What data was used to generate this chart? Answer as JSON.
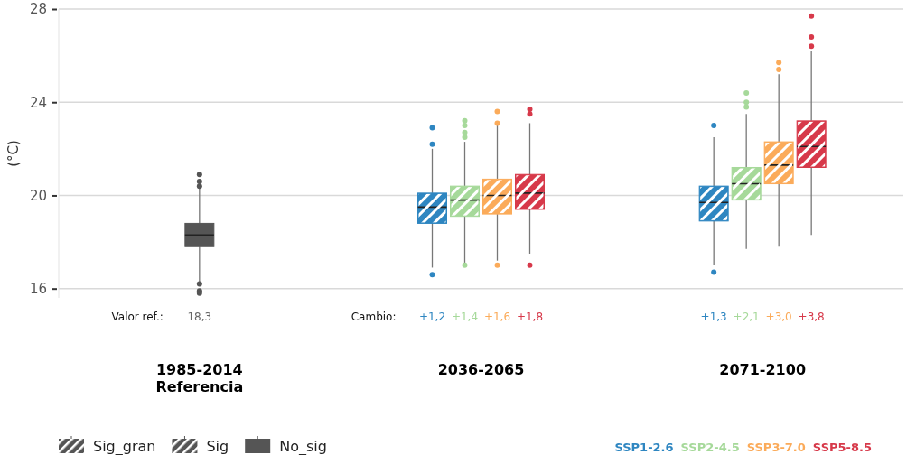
{
  "chart_data": {
    "type": "box",
    "ylabel": "(°C)",
    "categories": [
      "1985-2014\nReferencia",
      "2036-2065",
      "2071-2100"
    ],
    "ylim": [
      15.6,
      28
    ],
    "yticks": [
      16,
      20,
      24,
      28
    ],
    "grid": "y",
    "legend": "bottom right",
    "annotations": [
      "Valor ref.:",
      "Cambio:",
      "Sig_gran",
      "Sig",
      "No_sig"
    ],
    "series": [
      {
        "color": "#555555",
        "value_labels": [
          "18,3",
          null,
          null
        ],
        "boxes": [
          {
            "low": 16.3,
            "q1": 17.8,
            "median": 18.3,
            "q3": 18.8,
            "high": 20.3,
            "outliers": [
              20.4,
              20.6,
              20.9,
              16.2,
              15.9,
              15.8
            ]
          },
          null,
          null
        ]
      },
      {
        "name": "SSP1-2.6",
        "color": "#2e86c1",
        "value_labels": [
          null,
          "+1,2",
          "+1,3"
        ],
        "boxes": [
          null,
          {
            "low": 16.9,
            "q1": 18.8,
            "median": 19.5,
            "q3": 20.1,
            "high": 22.0,
            "outliers": [
              22.2,
              22.9,
              16.6
            ]
          },
          {
            "low": 17.0,
            "q1": 18.9,
            "median": 19.7,
            "q3": 20.4,
            "high": 22.5,
            "outliers": [
              23.0,
              16.7
            ]
          }
        ]
      },
      {
        "name": "SSP2-4.5",
        "color": "#a6d99a",
        "value_labels": [
          null,
          "+1,4",
          "+2,1"
        ],
        "boxes": [
          null,
          {
            "low": 17.1,
            "q1": 19.1,
            "median": 19.8,
            "q3": 20.4,
            "high": 22.3,
            "outliers": [
              22.5,
              22.7,
              23.0,
              23.2,
              17.0
            ]
          },
          {
            "low": 17.7,
            "q1": 19.8,
            "median": 20.5,
            "q3": 21.2,
            "high": 23.5,
            "outliers": [
              23.8,
              24.0,
              24.4
            ]
          }
        ]
      },
      {
        "name": "SSP3-7.0",
        "color": "#fbab5a",
        "value_labels": [
          null,
          "+1,6",
          "+3,0"
        ],
        "boxes": [
          null,
          {
            "low": 17.2,
            "q1": 19.2,
            "median": 20.0,
            "q3": 20.7,
            "high": 23.0,
            "outliers": [
              23.1,
              23.6,
              17.0
            ]
          },
          {
            "low": 17.8,
            "q1": 20.5,
            "median": 21.3,
            "q3": 22.3,
            "high": 25.2,
            "outliers": [
              25.4,
              25.7
            ]
          }
        ]
      },
      {
        "name": "SSP5-8.5",
        "color": "#d7394a",
        "value_labels": [
          null,
          "+1,8",
          "+3,8"
        ],
        "boxes": [
          null,
          {
            "low": 17.5,
            "q1": 19.4,
            "median": 20.1,
            "q3": 20.9,
            "high": 23.1,
            "outliers": [
              23.5,
              23.7,
              17.0
            ]
          },
          {
            "low": 18.3,
            "q1": 21.2,
            "median": 22.1,
            "q3": 23.2,
            "high": 26.2,
            "outliers": [
              26.4,
              26.8,
              27.7
            ]
          }
        ]
      }
    ]
  }
}
